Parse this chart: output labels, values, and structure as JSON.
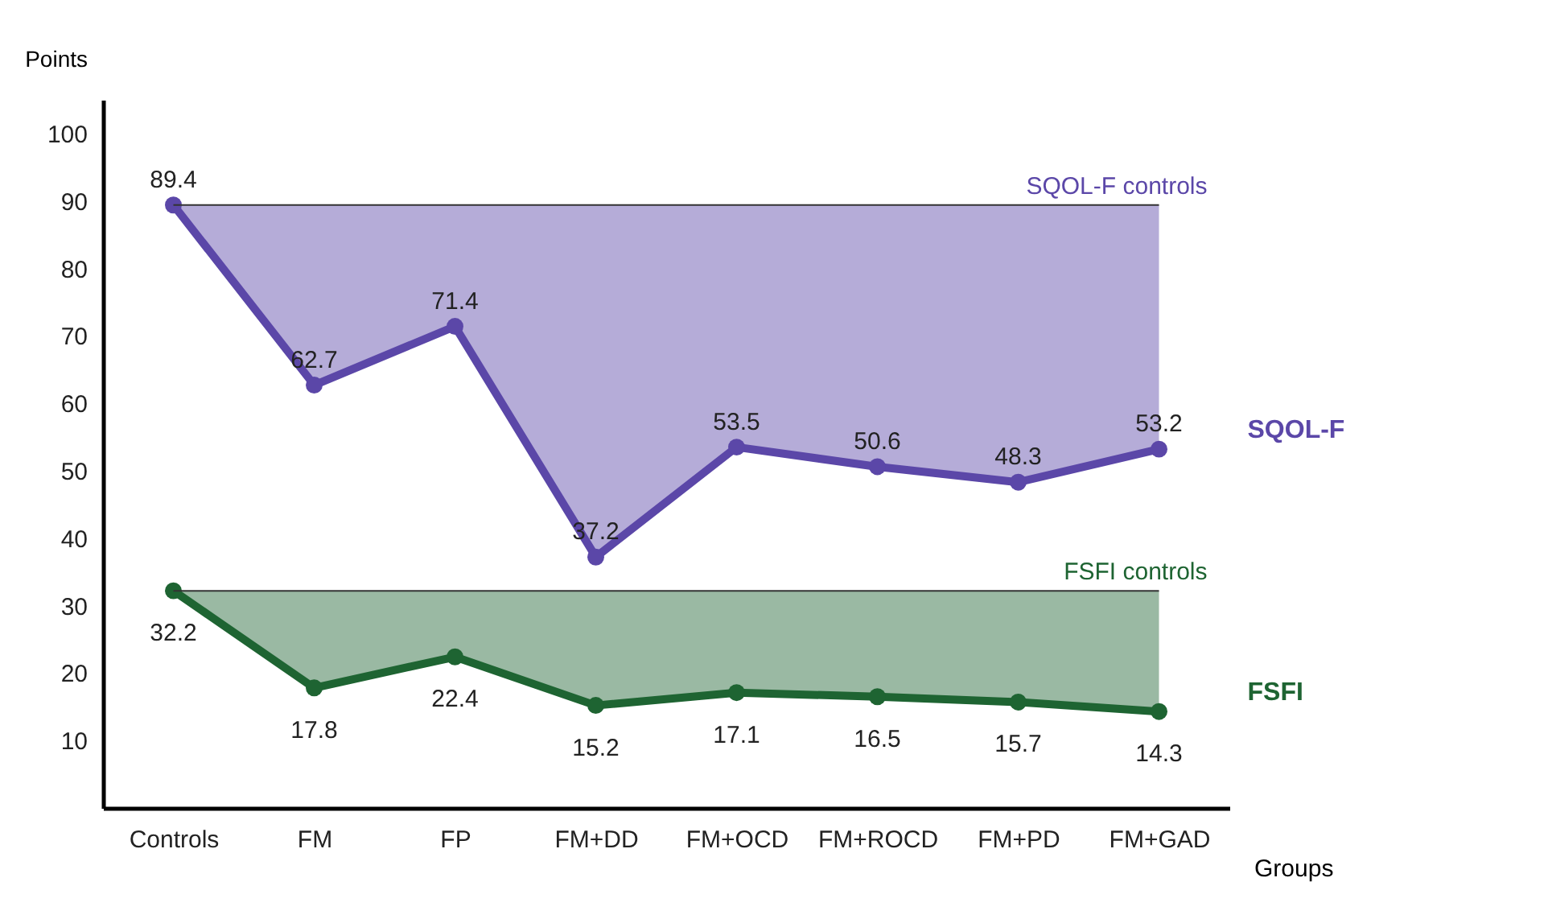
{
  "chart_data": {
    "type": "line",
    "xlabel": "Groups",
    "ylabel": "Points",
    "categories": [
      "Controls",
      "FM",
      "FP",
      "FM+DD",
      "FM+OCD",
      "FM+ROCD",
      "FM+PD",
      "FM+GAD"
    ],
    "series": [
      {
        "name": "SQOL-F",
        "color": "#5b47a8",
        "values": [
          89.4,
          62.7,
          71.4,
          37.2,
          53.5,
          50.6,
          48.3,
          53.2
        ]
      },
      {
        "name": "FSFI",
        "color": "#1e6432",
        "values": [
          32.2,
          17.8,
          22.4,
          15.2,
          17.1,
          16.5,
          15.7,
          14.3
        ]
      }
    ],
    "ref_lines": [
      {
        "axis": "y",
        "value": 89.4,
        "label": "SQOL-F controls",
        "color": "#333333"
      },
      {
        "axis": "y",
        "value": 32.2,
        "label": "FSFI controls",
        "color": "#333333"
      }
    ],
    "ylim": [
      0,
      105
    ],
    "yticks": [
      10,
      20,
      30,
      40,
      50,
      60,
      70,
      80,
      90,
      100
    ],
    "data_labels": true,
    "marker": "circle",
    "line_style": "solid",
    "grid": false
  }
}
